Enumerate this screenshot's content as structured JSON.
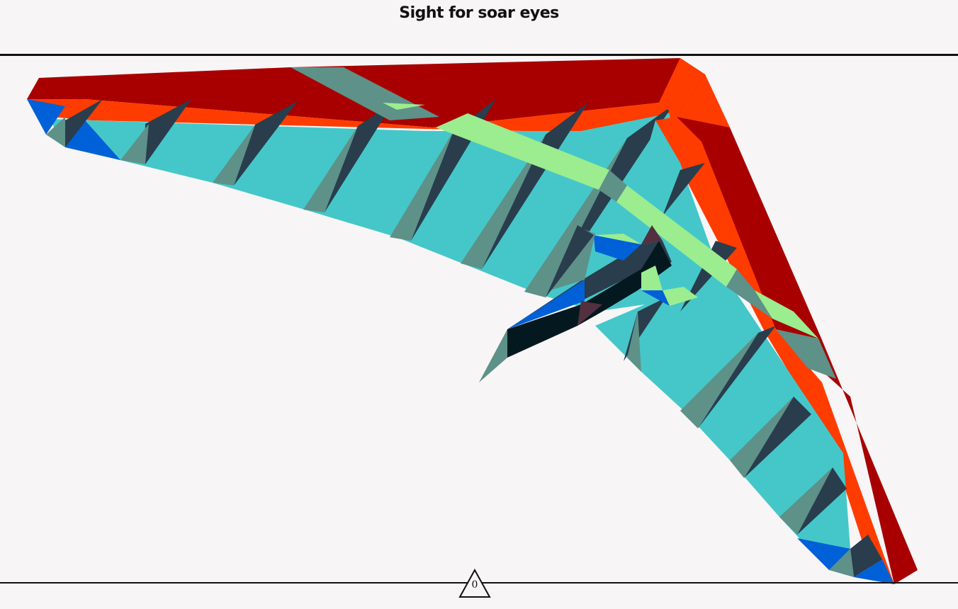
{
  "header": {
    "title": "Sight for soar eyes"
  },
  "counter": {
    "value": "0",
    "icon": "triangle-icon"
  },
  "colors": {
    "background": "#f7f5f6",
    "leading_edge": "#a80000",
    "stripe_orange": "#ff3c00",
    "sail": "#45c7c9",
    "batten_dark": "#293d4d",
    "batten_grey": "#5e9188",
    "keel_green": "#9bed8f",
    "accent_blue": "#0060d8",
    "pilot_dark": "#04191f",
    "pilot_maroon": "#53303f"
  }
}
